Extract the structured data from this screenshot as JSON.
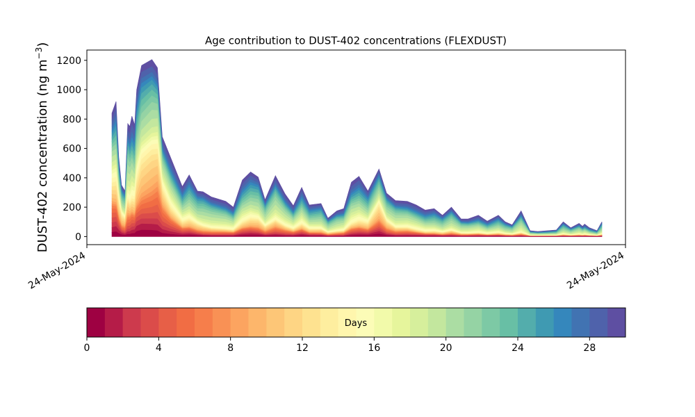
{
  "chart_data": {
    "type": "area",
    "title": "Age contribution to DUST-402 concentrations (FLEXDUST)",
    "ylabel": "DUST-402 concentration (ng m",
    "ylabel_superscript": "−3",
    "ylabel_close": ")",
    "ylim": [
      -55,
      1270
    ],
    "y_ticks": [
      0,
      200,
      400,
      600,
      800,
      1000,
      1200
    ],
    "x_tick_labels": [
      "24-May-2024",
      "24-May-2024"
    ],
    "x": [
      0.0,
      0.6,
      1.0,
      1.4,
      1.9,
      2.3,
      2.6,
      2.9,
      3.3,
      3.6,
      4.3,
      5.8,
      6.6,
      7.3,
      8.5,
      10.2,
      11.2,
      12.4,
      13.2,
      14.4,
      16.5,
      17.6,
      18.9,
      20.1,
      21.2,
      22.2,
      23.7,
      25.1,
      26.3,
      27.5,
      28.6,
      30.3,
      31.3,
      32.6,
      33.6,
      34.7,
      35.8,
      37.1,
      38.7,
      39.8,
      41.1,
      42.8,
      44.1,
      45.4,
      46.7,
      47.9,
      49.2,
      50.6,
      51.6,
      53.1,
      54.4,
      56.0,
      57.0,
      58.0,
      59.3,
      60.6,
      61.7,
      63.1,
      64.4,
      65.4,
      66.5,
      67.7,
      68.2,
      68.5,
      69.2,
      70.3,
      71.0
    ],
    "y_total": [
      840,
      920,
      540,
      350,
      310,
      770,
      750,
      820,
      760,
      1000,
      1165,
      1205,
      1150,
      680,
      540,
      340,
      420,
      310,
      305,
      270,
      240,
      200,
      385,
      440,
      405,
      250,
      415,
      290,
      210,
      335,
      215,
      225,
      125,
      175,
      190,
      370,
      410,
      310,
      460,
      295,
      245,
      240,
      215,
      180,
      190,
      145,
      200,
      120,
      120,
      145,
      105,
      145,
      100,
      80,
      175,
      40,
      35,
      40,
      45,
      100,
      60,
      90,
      70,
      85,
      60,
      40,
      100
    ],
    "y_young_share": [
      0.47,
      0.44,
      0.47,
      0.45,
      0.42,
      0.35,
      0.33,
      0.34,
      0.36,
      0.42,
      0.48,
      0.52,
      0.55,
      0.52,
      0.4,
      0.32,
      0.3,
      0.29,
      0.24,
      0.22,
      0.22,
      0.24,
      0.27,
      0.3,
      0.31,
      0.29,
      0.28,
      0.26,
      0.26,
      0.27,
      0.25,
      0.24,
      0.22,
      0.21,
      0.22,
      0.25,
      0.28,
      0.32,
      0.5,
      0.37,
      0.26,
      0.27,
      0.23,
      0.2,
      0.2,
      0.2,
      0.21,
      0.19,
      0.18,
      0.18,
      0.18,
      0.18,
      0.18,
      0.18,
      0.15,
      0.15,
      0.15,
      0.15,
      0.15,
      0.15,
      0.15,
      0.15,
      0.15,
      0.15,
      0.15,
      0.15,
      0.15
    ],
    "age_bins_days": [
      0,
      1,
      2,
      3,
      4,
      5,
      6,
      7,
      8,
      9,
      10,
      11,
      12,
      13,
      14,
      15,
      16,
      17,
      18,
      19,
      20,
      21,
      22,
      23,
      24,
      25,
      26,
      27,
      28,
      29,
      30
    ],
    "colorbar": {
      "label": "Days",
      "ticks": [
        0,
        4,
        8,
        12,
        16,
        20,
        24,
        28
      ],
      "range": [
        0,
        30
      ],
      "colormap": "Spectral"
    },
    "colors": [
      "#9e0142",
      "#b51c48",
      "#cd3a4d",
      "#db4c4a",
      "#e75f47",
      "#f16d44",
      "#f67e4b",
      "#f99155",
      "#fca460",
      "#fdb66b",
      "#fdc677",
      "#fed584",
      "#fee290",
      "#feee9f",
      "#fff6ad",
      "#fcfcb7",
      "#f2faaa",
      "#e6f59c",
      "#d6ef9c",
      "#c3e79e",
      "#abdda3",
      "#95d3a4",
      "#7dc9a5",
      "#68bfa5",
      "#53adac",
      "#3f9ab2",
      "#3587bc",
      "#4173b2",
      "#4f62ab",
      "#5e4fa2"
    ]
  }
}
